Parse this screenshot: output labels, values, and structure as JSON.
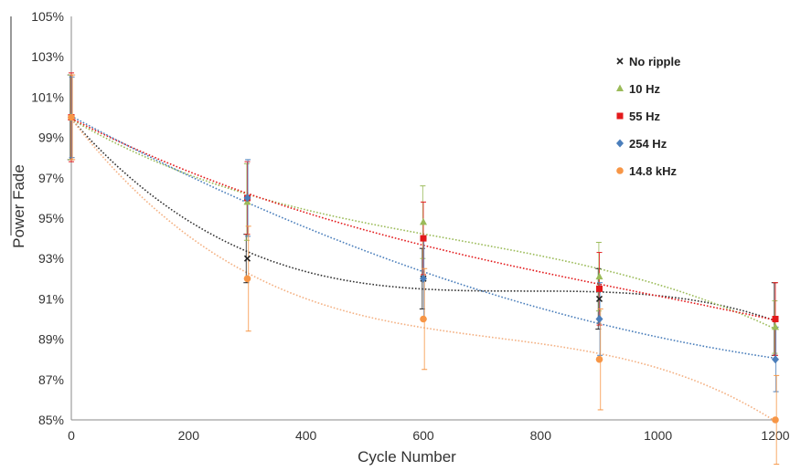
{
  "chart_data": {
    "type": "scatter",
    "xlabel": "Cycle Number",
    "ylabel": "Power Fade",
    "xlim": [
      0,
      1200
    ],
    "ylim": [
      85,
      105
    ],
    "x_ticks": [
      "0",
      "200",
      "400",
      "600",
      "800",
      "1000",
      "1200"
    ],
    "y_ticks": [
      "85%",
      "87%",
      "89%",
      "91%",
      "93%",
      "95%",
      "97%",
      "99%",
      "101%",
      "103%",
      "105%"
    ],
    "grid": false,
    "legend_position": "right",
    "trendline": "polynomial",
    "series": [
      {
        "name": "No ripple",
        "marker": "x",
        "color": "#222222",
        "x": [
          0,
          300,
          600,
          900,
          1200
        ],
        "y": [
          100,
          93.0,
          92.0,
          91.0,
          90.0
        ],
        "err": [
          2.1,
          1.2,
          1.5,
          1.5,
          1.8
        ],
        "trend_color": "#333333"
      },
      {
        "name": "10 Hz",
        "marker": "triangle",
        "color": "#9bbb59",
        "x": [
          0,
          300,
          600,
          900,
          1200
        ],
        "y": [
          100,
          95.8,
          94.8,
          92.1,
          89.6
        ],
        "err": [
          2.1,
          1.9,
          1.8,
          1.7,
          1.3
        ],
        "trend_color": "#9bbb59"
      },
      {
        "name": "55 Hz",
        "marker": "square",
        "color": "#e31a1c",
        "x": [
          0,
          300,
          600,
          900,
          1200
        ],
        "y": [
          100,
          96.0,
          94.0,
          91.5,
          90.0
        ],
        "err": [
          2.2,
          1.8,
          1.8,
          1.8,
          1.8
        ],
        "trend_color": "#e31a1c"
      },
      {
        "name": "254 Hz",
        "marker": "diamond",
        "color": "#4a7ebb",
        "x": [
          0,
          300,
          600,
          900,
          1200
        ],
        "y": [
          100,
          96.0,
          92.0,
          90.0,
          88.0
        ],
        "err": [
          2.0,
          1.9,
          2.0,
          1.8,
          1.6
        ],
        "trend_color": "#4a7ebb"
      },
      {
        "name": "14.8 kHz",
        "marker": "circle",
        "color": "#f79646",
        "x": [
          0,
          300,
          600,
          900,
          1200
        ],
        "y": [
          100,
          92.0,
          90.0,
          88.0,
          85.0
        ],
        "err": [
          2.1,
          2.6,
          2.5,
          2.5,
          2.2
        ],
        "trend_color": "#f4b183"
      }
    ]
  }
}
